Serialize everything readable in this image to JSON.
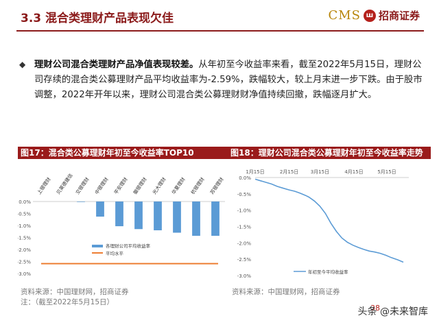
{
  "header": {
    "title": "3.3 混合类理财产品表现欠佳",
    "logo_text": "CMS",
    "logo_seal": "ш",
    "logo_cn": "招商证券"
  },
  "bullet": {
    "bold": "理财公司混合类理财产品净值表现较差。",
    "text": "从年初至今收益率来看，截至2022年5月15日，理财公司存续的混合类公募理财产品平均收益率为-2.59%，跌幅较大，较上月末进一步下跌。由于股市调整，2022年开年以来，理财公司混合类公募理财财净值持续回撤，跌幅逐月扩大。"
  },
  "charts": {
    "left": {
      "header": "图17：混合类公募理财年初至今收益率TOP10",
      "source": "资料来源：中国理财网，招商证券",
      "note": "注：（截至2022年5月15日）"
    },
    "right": {
      "header": "图18：理财公司混合类公募理财年初至今收益率走势",
      "source": "资料来源：中国理财网，招商证券"
    }
  },
  "chart_data": [
    {
      "type": "bar",
      "title": "图17：混合类公募理财年初至今收益率TOP10",
      "categories": [
        "上银理财",
        "贝莱德建信",
        "交银理财",
        "中银理财",
        "平安理财",
        "徽银理财",
        "光大理财",
        "华夏理财",
        "杭银理财",
        "苏银理财"
      ],
      "series": [
        {
          "name": "各理财公司平均收益率",
          "values": [
            0.0,
            0.0,
            -0.02,
            -0.63,
            -1.03,
            -1.15,
            -1.2,
            -1.3,
            -1.43,
            -1.43
          ],
          "color": "#5b9bd5"
        }
      ],
      "reference_line": {
        "name": "平均水平",
        "value": -2.59,
        "color": "#ed7d31"
      },
      "ylim": [
        -3.0,
        0.0
      ],
      "yticks": [
        "0.0%",
        "-0.5%",
        "-1.0%",
        "-1.5%",
        "-2.0%",
        "-2.5%",
        "-3.0%"
      ],
      "ytick_values": [
        0.0,
        -0.5,
        -1.0,
        -1.5,
        -2.0,
        -2.5,
        -3.0
      ],
      "legend_position": "lower-left",
      "grid": false
    },
    {
      "type": "line",
      "title": "图18：理财公司混合类公募理财年初至今收益率走势",
      "x_ticks": [
        "1月15日",
        "2月15日",
        "3月15日",
        "4月15日",
        "5月15日"
      ],
      "series": [
        {
          "name": "年初至今平均收益率",
          "color": "#5b9bd5",
          "x": [
            0,
            5,
            10,
            15,
            20,
            25,
            31,
            36,
            41,
            46,
            49,
            54,
            59,
            64,
            69,
            74,
            79,
            84,
            89,
            94,
            99,
            104,
            109,
            114,
            119,
            124,
            130,
            135
          ],
          "values": [
            -0.05,
            -0.1,
            -0.15,
            -0.2,
            -0.27,
            -0.32,
            -0.38,
            -0.42,
            -0.48,
            -0.55,
            -0.6,
            -0.72,
            -0.88,
            -1.1,
            -1.4,
            -1.65,
            -1.85,
            -1.98,
            -2.07,
            -2.14,
            -2.2,
            -2.25,
            -2.28,
            -2.32,
            -2.38,
            -2.45,
            -2.52,
            -2.59
          ]
        }
      ],
      "x_tick_positions": [
        0,
        31,
        59,
        90,
        120
      ],
      "ylim": [
        -3.0,
        0.0
      ],
      "yticks": [
        "0.0%",
        "-0.5%",
        "-1.0%",
        "-1.5%",
        "-2.0%",
        "-2.5%",
        "-3.0%"
      ],
      "ytick_values": [
        0.0,
        -0.5,
        -1.0,
        -1.5,
        -2.0,
        -2.5,
        -3.0
      ],
      "x_axis_position": "top",
      "legend_position": "bottom-left",
      "grid": false
    }
  ],
  "footer": {
    "watermark": "头条 @未来智库",
    "page": "38"
  }
}
